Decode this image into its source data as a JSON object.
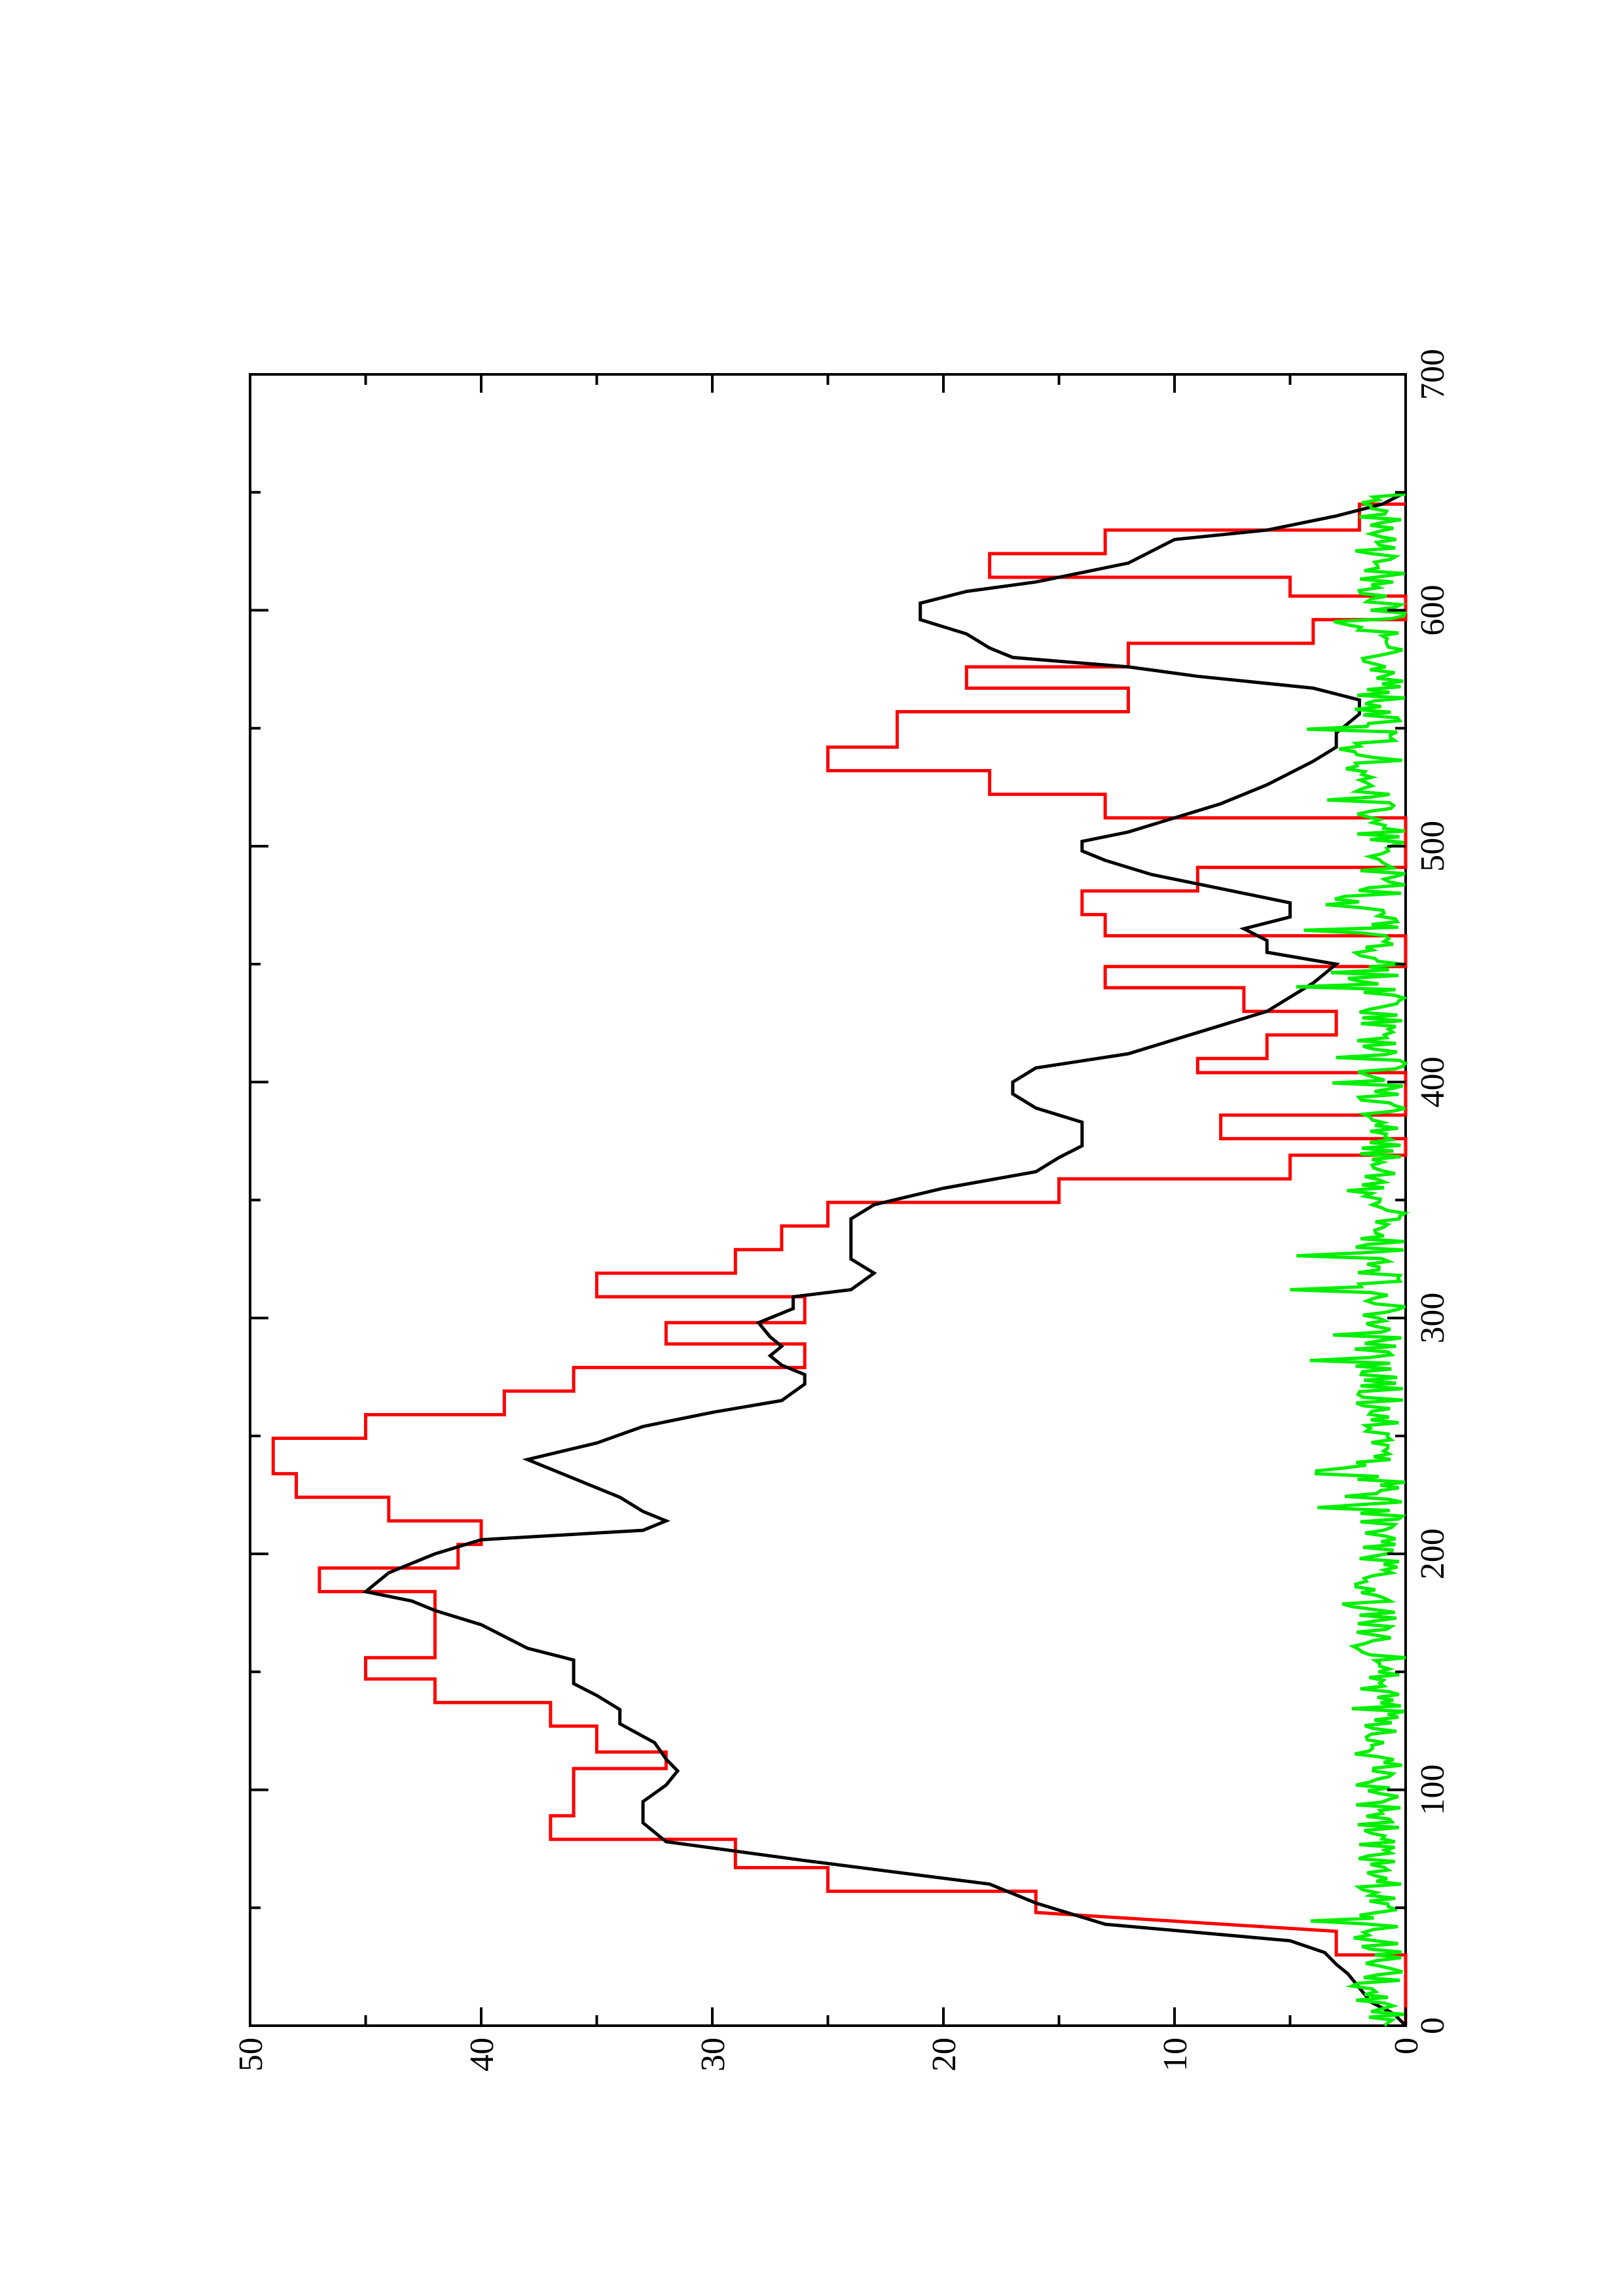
{
  "chart_data": {
    "type": "line",
    "orientation": "rotated-90-ccw",
    "xlim": [
      0,
      700
    ],
    "ylim": [
      0,
      50
    ],
    "x_ticks": [
      "0",
      "100",
      "200",
      "300",
      "400",
      "500",
      "600",
      "700"
    ],
    "y_ticks": [
      "0",
      "10",
      "20",
      "30",
      "40",
      "50"
    ],
    "grid": false,
    "legend": "none",
    "series": [
      {
        "color": "#ff0000",
        "style": "step",
        "points": [
          [
            0,
            0
          ],
          [
            30,
            0
          ],
          [
            30,
            3
          ],
          [
            40,
            3
          ],
          [
            48,
            16
          ],
          [
            57,
            16
          ],
          [
            57,
            25
          ],
          [
            67,
            25
          ],
          [
            67,
            29
          ],
          [
            79,
            29
          ],
          [
            79,
            37
          ],
          [
            89,
            37
          ],
          [
            89,
            36
          ],
          [
            109,
            36
          ],
          [
            109,
            32
          ],
          [
            116,
            32
          ],
          [
            116,
            35
          ],
          [
            127,
            35
          ],
          [
            127,
            37
          ],
          [
            137,
            37
          ],
          [
            137,
            42
          ],
          [
            147,
            42
          ],
          [
            147,
            45
          ],
          [
            156,
            45
          ],
          [
            156,
            42
          ],
          [
            184,
            42
          ],
          [
            184,
            47
          ],
          [
            194,
            47
          ],
          [
            194,
            41
          ],
          [
            204,
            41
          ],
          [
            204,
            40
          ],
          [
            214,
            40
          ],
          [
            214,
            44
          ],
          [
            224,
            44
          ],
          [
            224,
            48
          ],
          [
            234,
            48
          ],
          [
            234,
            49
          ],
          [
            249,
            49
          ],
          [
            249,
            45
          ],
          [
            259,
            45
          ],
          [
            259,
            39
          ],
          [
            269,
            39
          ],
          [
            269,
            36
          ],
          [
            279,
            36
          ],
          [
            279,
            26
          ],
          [
            289,
            26
          ],
          [
            289,
            32
          ],
          [
            298,
            32
          ],
          [
            298,
            26
          ],
          [
            309,
            26
          ],
          [
            309,
            35
          ],
          [
            319,
            35
          ],
          [
            319,
            29
          ],
          [
            329,
            29
          ],
          [
            329,
            27
          ],
          [
            339,
            27
          ],
          [
            339,
            25
          ],
          [
            349,
            25
          ],
          [
            349,
            15
          ],
          [
            359,
            15
          ],
          [
            359,
            5
          ],
          [
            369,
            5
          ],
          [
            369,
            0
          ],
          [
            376,
            0
          ],
          [
            376,
            8
          ],
          [
            386,
            8
          ],
          [
            386,
            0
          ],
          [
            404,
            0
          ],
          [
            404,
            9
          ],
          [
            410,
            9
          ],
          [
            410,
            6
          ],
          [
            420,
            6
          ],
          [
            420,
            3
          ],
          [
            430,
            3
          ],
          [
            430,
            7
          ],
          [
            440,
            7
          ],
          [
            440,
            13
          ],
          [
            449,
            13
          ],
          [
            449,
            0
          ],
          [
            462,
            0
          ],
          [
            462,
            13
          ],
          [
            471,
            13
          ],
          [
            471,
            14
          ],
          [
            481,
            14
          ],
          [
            481,
            9
          ],
          [
            491,
            9
          ],
          [
            491,
            0
          ],
          [
            512,
            0
          ],
          [
            512,
            13
          ],
          [
            522,
            13
          ],
          [
            522,
            18
          ],
          [
            532,
            18
          ],
          [
            532,
            25
          ],
          [
            542,
            25
          ],
          [
            542,
            22
          ],
          [
            557,
            22
          ],
          [
            557,
            12
          ],
          [
            567,
            12
          ],
          [
            567,
            19
          ],
          [
            576,
            19
          ],
          [
            576,
            12
          ],
          [
            586,
            12
          ],
          [
            586,
            4
          ],
          [
            596,
            4
          ],
          [
            596,
            0
          ],
          [
            606,
            0
          ],
          [
            606,
            5
          ],
          [
            614,
            5
          ],
          [
            614,
            18
          ],
          [
            624,
            18
          ],
          [
            624,
            13
          ],
          [
            634,
            13
          ],
          [
            634,
            2
          ],
          [
            645,
            2
          ],
          [
            645,
            0
          ]
        ]
      },
      {
        "color": "#000000",
        "style": "line",
        "points": [
          [
            0,
            0
          ],
          [
            5,
            0.5
          ],
          [
            10,
            1.5
          ],
          [
            16,
            2
          ],
          [
            22,
            2.5
          ],
          [
            26,
            3
          ],
          [
            31,
            3.5
          ],
          [
            36,
            5
          ],
          [
            43,
            13
          ],
          [
            52,
            16
          ],
          [
            60,
            18
          ],
          [
            70,
            26
          ],
          [
            78,
            32
          ],
          [
            86,
            33
          ],
          [
            95,
            33
          ],
          [
            102,
            32
          ],
          [
            108,
            31.5
          ],
          [
            113,
            32
          ],
          [
            120,
            32.5
          ],
          [
            128,
            34
          ],
          [
            134,
            34
          ],
          [
            140,
            35
          ],
          [
            145,
            36
          ],
          [
            155,
            36
          ],
          [
            160,
            38
          ],
          [
            170,
            40
          ],
          [
            176,
            42
          ],
          [
            180,
            43
          ],
          [
            184,
            45
          ],
          [
            192,
            44
          ],
          [
            200,
            42
          ],
          [
            206,
            40
          ],
          [
            210,
            33
          ],
          [
            214,
            32
          ],
          [
            218,
            33
          ],
          [
            224,
            34
          ],
          [
            232,
            36
          ],
          [
            240,
            38
          ],
          [
            247,
            35
          ],
          [
            254,
            33
          ],
          [
            260,
            30
          ],
          [
            265,
            27
          ],
          [
            272,
            26
          ],
          [
            276,
            26
          ],
          [
            280,
            27
          ],
          [
            284,
            27.5
          ],
          [
            288,
            27
          ],
          [
            292,
            27.5
          ],
          [
            298,
            28
          ],
          [
            304,
            26.5
          ],
          [
            309,
            26.5
          ],
          [
            312,
            24
          ],
          [
            319,
            23
          ],
          [
            325,
            24
          ],
          [
            330,
            24
          ],
          [
            337,
            24
          ],
          [
            342,
            24
          ],
          [
            348,
            23
          ],
          [
            355,
            20
          ],
          [
            362,
            16
          ],
          [
            368,
            15
          ],
          [
            373,
            14
          ],
          [
            378,
            14
          ],
          [
            383,
            14
          ],
          [
            389,
            16
          ],
          [
            395,
            17
          ],
          [
            400,
            17
          ],
          [
            406,
            16
          ],
          [
            412,
            12
          ],
          [
            418,
            10
          ],
          [
            424,
            8
          ],
          [
            430,
            6
          ],
          [
            436,
            5
          ],
          [
            442,
            4
          ],
          [
            450,
            3
          ],
          [
            455,
            6
          ],
          [
            460,
            6
          ],
          [
            465,
            7
          ],
          [
            470,
            5
          ],
          [
            476,
            5
          ],
          [
            482,
            8
          ],
          [
            488,
            11
          ],
          [
            494,
            13
          ],
          [
            498,
            14
          ],
          [
            502,
            14
          ],
          [
            506,
            12
          ],
          [
            512,
            10
          ],
          [
            518,
            8
          ],
          [
            526,
            6
          ],
          [
            531,
            5
          ],
          [
            536,
            4
          ],
          [
            542,
            3
          ],
          [
            548,
            3
          ],
          [
            556,
            2
          ],
          [
            562,
            2
          ],
          [
            567,
            4
          ],
          [
            572,
            9
          ],
          [
            576,
            12
          ],
          [
            580,
            17
          ],
          [
            584,
            18
          ],
          [
            590,
            19
          ],
          [
            596,
            21
          ],
          [
            603,
            21
          ],
          [
            608,
            19
          ],
          [
            612,
            16
          ],
          [
            616,
            14
          ],
          [
            620,
            12
          ],
          [
            625,
            11
          ],
          [
            630,
            10
          ],
          [
            634,
            6
          ],
          [
            640,
            3
          ],
          [
            645,
            1
          ],
          [
            650,
            0
          ]
        ]
      },
      {
        "color": "#00ee00",
        "style": "noise",
        "amplitude": [
          0,
          5
        ],
        "xrange": [
          0,
          650
        ]
      }
    ]
  }
}
